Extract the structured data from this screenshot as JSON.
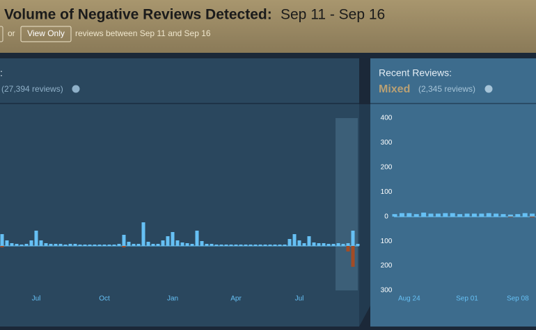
{
  "header": {
    "title": "Volume of Negative Reviews Detected:",
    "date_range": "Sep 11 - Sep 16",
    "or_text": "or",
    "button": "View Only",
    "note": "reviews between Sep 11 and Sep 16"
  },
  "overall": {
    "label": ":",
    "count": "(27,394 reviews)"
  },
  "recent": {
    "label": "Recent Reviews:",
    "rating": "Mixed",
    "count": "(2,345 reviews)"
  },
  "chart_data": [
    {
      "type": "bar",
      "ylim": [
        -64,
        204
      ],
      "categories": [
        null,
        null,
        null,
        null,
        null,
        null,
        null,
        "Jul",
        null,
        null,
        null,
        null,
        null,
        null,
        null,
        null,
        null,
        null,
        null,
        null,
        null,
        "Oct",
        null,
        null,
        null,
        null,
        null,
        null,
        null,
        null,
        null,
        null,
        null,
        null,
        null,
        "Jan",
        null,
        null,
        null,
        null,
        null,
        null,
        null,
        null,
        null,
        null,
        null,
        null,
        "Apr",
        null,
        null,
        null,
        null,
        null,
        null,
        null,
        null,
        null,
        null,
        null,
        null,
        "Jul",
        null,
        null,
        null,
        null,
        null,
        null,
        null,
        null,
        null,
        null,
        null,
        null
      ],
      "series": [
        {
          "color": "#66c0f4",
          "values": [
            17,
            8,
            4,
            3,
            2,
            3,
            8,
            22,
            8,
            4,
            3,
            3,
            3,
            2,
            3,
            3,
            2,
            2,
            2,
            2,
            2,
            2,
            2,
            2,
            3,
            16,
            6,
            3,
            3,
            34,
            6,
            3,
            3,
            8,
            14,
            20,
            8,
            5,
            4,
            3,
            22,
            7,
            3,
            3,
            2,
            2,
            2,
            2,
            2,
            2,
            2,
            2,
            2,
            2,
            2,
            2,
            2,
            2,
            2,
            10,
            17,
            8,
            4,
            14,
            5,
            4,
            4,
            3,
            3,
            4,
            3,
            4,
            22,
            3
          ]
        },
        {
          "color": "#a34c25",
          "values": [
            -2,
            0,
            0,
            0,
            0,
            0,
            0,
            0,
            0,
            0,
            0,
            0,
            0,
            0,
            0,
            0,
            0,
            0,
            0,
            0,
            0,
            0,
            0,
            0,
            0,
            -2,
            0,
            0,
            0,
            0,
            0,
            0,
            0,
            0,
            0,
            0,
            0,
            0,
            0,
            0,
            0,
            0,
            0,
            0,
            0,
            0,
            0,
            0,
            0,
            0,
            0,
            0,
            0,
            0,
            0,
            0,
            0,
            0,
            0,
            0,
            0,
            0,
            0,
            0,
            0,
            0,
            0,
            0,
            0,
            0,
            0,
            -8,
            -30,
            0
          ]
        }
      ]
    },
    {
      "type": "bar",
      "ylim": [
        -300,
        400
      ],
      "yticks": [
        400,
        300,
        200,
        100,
        0,
        {
          "value": -100,
          "label": "100"
        },
        {
          "value": -200,
          "label": "200"
        },
        {
          "value": -300,
          "label": "300"
        }
      ],
      "categories": [
        null,
        null,
        "Aug 24",
        null,
        null,
        null,
        null,
        null,
        null,
        null,
        "Sep 01",
        null,
        null,
        null,
        null,
        null,
        null,
        "Sep 08",
        null,
        null
      ],
      "series": [
        {
          "color": "#66c0f4",
          "values": [
            10,
            14,
            14,
            10,
            16,
            12,
            12,
            14,
            14,
            10,
            12,
            12,
            12,
            14,
            12,
            10,
            8,
            10,
            14,
            12
          ]
        },
        {
          "color": "#a34c25",
          "values": [
            0,
            0,
            0,
            0,
            0,
            0,
            0,
            0,
            0,
            0,
            0,
            0,
            0,
            0,
            0,
            0,
            -2,
            0,
            0,
            -3
          ]
        }
      ]
    }
  ]
}
